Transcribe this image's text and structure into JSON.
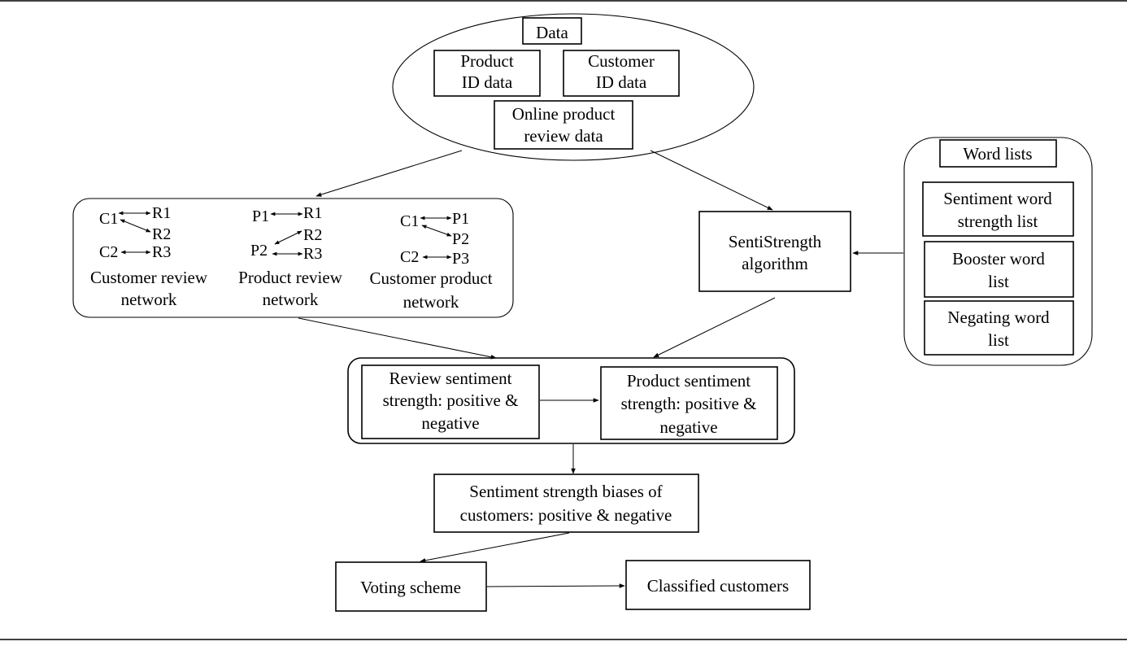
{
  "data_group": {
    "title": "Data",
    "product_id": [
      "Product",
      "ID data"
    ],
    "customer_id": [
      "Customer",
      "ID data"
    ],
    "review_data": [
      "Online product",
      "review data"
    ]
  },
  "networks": {
    "customer_review": {
      "nodes": [
        "C1",
        "R1",
        "R2",
        "C2",
        "R3"
      ],
      "label": [
        "Customer review",
        "network"
      ]
    },
    "product_review": {
      "nodes": [
        "P1",
        "R1",
        "R2",
        "P2",
        "R3"
      ],
      "label": [
        "Product review",
        "network"
      ]
    },
    "customer_product": {
      "nodes": [
        "C1",
        "P1",
        "P2",
        "C2",
        "P3"
      ],
      "label": [
        "Customer product",
        "network"
      ]
    }
  },
  "sentistrength": [
    "SentiStrength",
    "algorithm"
  ],
  "word_lists": {
    "title": "Word lists",
    "sentiment": [
      "Sentiment word",
      "strength list"
    ],
    "booster": [
      "Booster word",
      "list"
    ],
    "negating": [
      "Negating word",
      "list"
    ]
  },
  "sentiment_group": {
    "review": [
      "Review sentiment",
      "strength: positive &",
      "negative"
    ],
    "product": [
      "Product sentiment",
      "strength: positive &",
      "negative"
    ]
  },
  "biases": [
    "Sentiment strength biases of",
    "customers: positive & negative"
  ],
  "voting": "Voting scheme",
  "classified": "Classified customers"
}
